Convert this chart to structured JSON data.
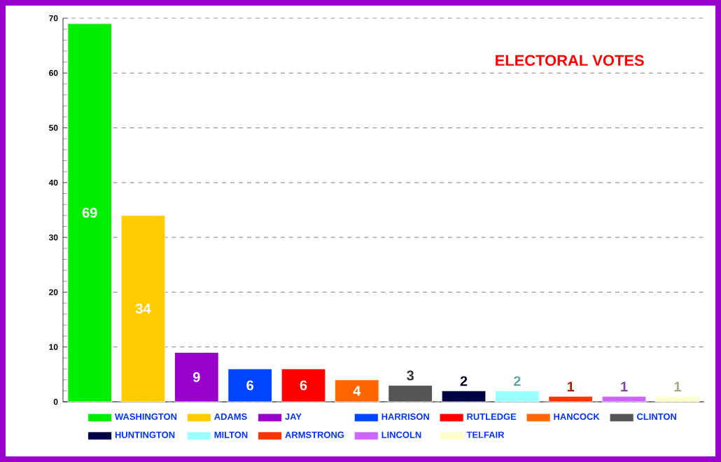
{
  "chart_data": {
    "type": "bar",
    "title": "ELECTORAL VOTES",
    "categories": [
      null,
      null,
      null,
      null,
      null,
      null,
      null,
      null,
      null,
      null,
      null,
      null
    ],
    "series": [
      {
        "name": "WASHINGTON",
        "color": "#00ee00",
        "values": [
          69,
          null,
          null,
          null,
          null,
          null,
          null,
          null,
          null,
          null,
          null,
          null
        ]
      },
      {
        "name": "ADAMS",
        "color": "#ffcc00",
        "values": [
          null,
          34,
          null,
          null,
          null,
          null,
          null,
          null,
          null,
          null,
          null,
          null
        ]
      },
      {
        "name": "JAY",
        "color": "#9900cc",
        "values": [
          null,
          null,
          9,
          null,
          null,
          null,
          null,
          null,
          null,
          null,
          null,
          null
        ]
      },
      {
        "name": "HARRISON",
        "color": "#0044ff",
        "values": [
          null,
          null,
          null,
          6,
          null,
          null,
          null,
          null,
          null,
          null,
          null,
          null
        ]
      },
      {
        "name": "RUTLEDGE",
        "color": "#ff0000",
        "values": [
          null,
          null,
          null,
          null,
          6,
          null,
          null,
          null,
          null,
          null,
          null,
          null
        ]
      },
      {
        "name": "HANCOCK",
        "color": "#ff6600",
        "values": [
          null,
          null,
          null,
          null,
          null,
          4,
          null,
          null,
          null,
          null,
          null,
          null
        ]
      },
      {
        "name": "CLINTON",
        "color": "#555555",
        "values": [
          null,
          null,
          null,
          null,
          null,
          null,
          3,
          null,
          null,
          null,
          null,
          null
        ]
      },
      {
        "name": "HUNTINGTON",
        "color": "#000044",
        "values": [
          null,
          null,
          null,
          null,
          null,
          null,
          null,
          2,
          null,
          null,
          null,
          null
        ]
      },
      {
        "name": "MILTON",
        "color": "#99ffff",
        "values": [
          null,
          null,
          null,
          null,
          null,
          null,
          null,
          null,
          2,
          null,
          null,
          null
        ]
      },
      {
        "name": "ARMSTRONG",
        "color": "#ff3300",
        "values": [
          null,
          null,
          null,
          null,
          null,
          null,
          null,
          null,
          null,
          1,
          null,
          null
        ]
      },
      {
        "name": "LINCOLN",
        "color": "#cc66ff",
        "values": [
          null,
          null,
          null,
          null,
          null,
          null,
          null,
          null,
          null,
          null,
          1,
          null
        ]
      },
      {
        "name": "TELFAIR",
        "color": "#ffffcc",
        "values": [
          null,
          null,
          null,
          null,
          null,
          null,
          null,
          null,
          null,
          null,
          null,
          1
        ]
      }
    ],
    "ylim": [
      0,
      70
    ],
    "yticks": [
      0,
      10,
      20,
      30,
      40,
      50,
      60,
      70
    ],
    "grid": "y",
    "data_labels": true,
    "legend": "bottom"
  }
}
